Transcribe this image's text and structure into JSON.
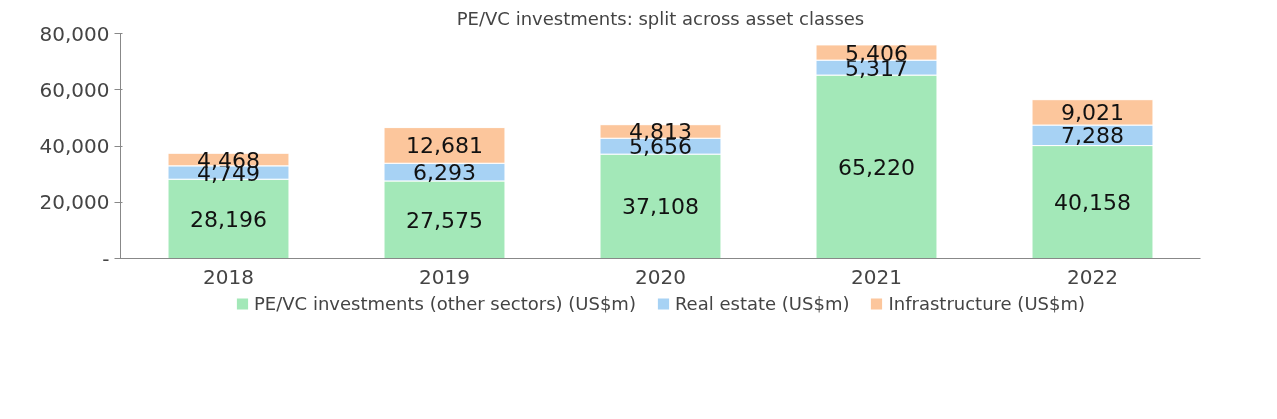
{
  "chart_data": {
    "type": "bar",
    "title": "PE/VC investments: split across asset classes",
    "categories": [
      "2018",
      "2019",
      "2020",
      "2021",
      "2022"
    ],
    "stacked": true,
    "series": [
      {
        "name": "PE/VC investments (other sectors) (US$m)",
        "color": "#a3e8b8",
        "values": [
          28196,
          27575,
          37108,
          65220,
          40158
        ],
        "value_labels": [
          "28,196",
          "27,575",
          "37,108",
          "65,220",
          "40,158"
        ]
      },
      {
        "name": "Real estate (US$m)",
        "color": "#a7d2f4",
        "values": [
          4749,
          6293,
          5656,
          5317,
          7288
        ],
        "value_labels": [
          "4,749",
          "6,293",
          "5,656",
          "5,317",
          "7,288"
        ]
      },
      {
        "name": "Infrastructure (US$m)",
        "color": "#fcc69c",
        "values": [
          4468,
          12681,
          4813,
          5406,
          9021
        ],
        "value_labels": [
          "4,468",
          "12,681",
          "4,813",
          "5,406",
          "9,021"
        ]
      }
    ],
    "ylim": [
      0,
      80000
    ],
    "yticks": [
      {
        "value": 0,
        "label": "-"
      },
      {
        "value": 20000,
        "label": "20,000"
      },
      {
        "value": 40000,
        "label": "40,000"
      },
      {
        "value": 60000,
        "label": "60,000"
      },
      {
        "value": 80000,
        "label": "80,000"
      }
    ],
    "legend": "bottom",
    "grid": false
  }
}
